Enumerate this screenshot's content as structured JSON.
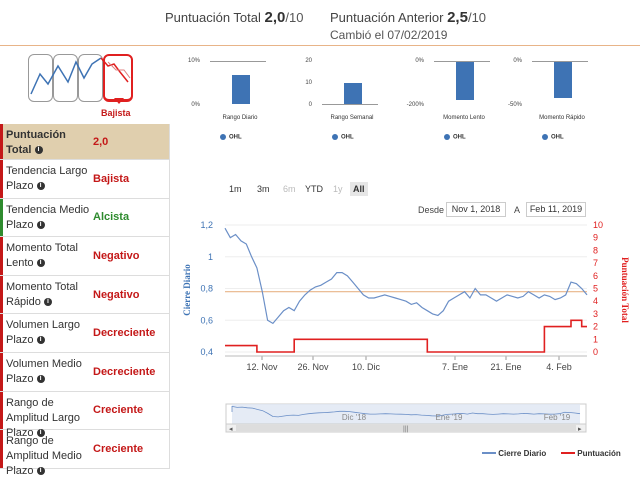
{
  "header": {
    "total_label": "Puntuación Total",
    "total_value": "2,0",
    "total_suffix": "/10",
    "prev_label": "Puntuación Anterior",
    "prev_value": "2,5",
    "prev_suffix": "/10",
    "changed": "Cambió el 07/02/2019"
  },
  "trend": {
    "label": "Bajista",
    "colors": {
      "active": "#e02020",
      "line": "#3e73b4"
    }
  },
  "sidebar": {
    "rows": [
      {
        "label": "Puntuación Total",
        "value": "2,0",
        "color": "red",
        "head": true
      },
      {
        "label": "Tendencia Largo Plazo",
        "value": "Bajista",
        "color": "red"
      },
      {
        "label": "Tendencia Medio Plazo",
        "value": "Alcista",
        "color": "green"
      },
      {
        "label": "Momento Total Lento",
        "value": "Negativo",
        "color": "red"
      },
      {
        "label": "Momento Total Rápido",
        "value": "Negativo",
        "color": "red"
      },
      {
        "label": "Volumen Largo Plazo",
        "value": "Decreciente",
        "color": "red"
      },
      {
        "label": "Volumen Medio Plazo",
        "value": "Decreciente",
        "color": "red"
      },
      {
        "label": "Rango de Amplitud Largo Plazo",
        "value": "Creciente",
        "color": "red"
      },
      {
        "label": "Rango de Amplitud Medio Plazo",
        "value": "Creciente",
        "color": "red"
      }
    ]
  },
  "mini_charts": [
    {
      "type": "bar",
      "title": "Rango Diario",
      "yticks": [
        "10%",
        "0%"
      ],
      "value_frac": 0.7,
      "base": "top0",
      "legend": "OHL"
    },
    {
      "type": "bar",
      "title": "Rango Semanal",
      "yticks": [
        "20",
        "10",
        "0"
      ],
      "value_frac": 0.5,
      "base": "bottom",
      "legend": "OHL"
    },
    {
      "type": "bar",
      "title": "Momento Lento",
      "yticks": [
        "0%",
        "-200%"
      ],
      "value_frac": 0.95,
      "base": "neg",
      "legend": "OHL"
    },
    {
      "type": "bar",
      "title": "Momento Rápido",
      "yticks": [
        "0%",
        "-50%"
      ],
      "value_frac": 0.9,
      "base": "neg",
      "legend": "OHL"
    }
  ],
  "range_selector": {
    "buttons": [
      "1m",
      "3m",
      "6m",
      "YTD",
      "1y",
      "All"
    ],
    "selected": "All",
    "disabled": [
      "6m",
      "1y"
    ],
    "from_label": "Desde",
    "from_value": "Nov 1, 2018",
    "to_label": "A",
    "to_value": "Feb 11, 2019"
  },
  "chart_data": {
    "type": "line",
    "ylabel": "Cierre Diario",
    "y2label": "Puntuación Total",
    "x_ticks": [
      "12. Nov",
      "26. Nov",
      "10. Dic",
      "7. Ene",
      "21. Ene",
      "4. Feb"
    ],
    "y_ticks": [
      "1,2",
      "1",
      "0,8",
      "0,6",
      "0,4"
    ],
    "y2_ticks": [
      "10",
      "9",
      "8",
      "7",
      "6",
      "5",
      "4",
      "3",
      "2",
      "1",
      "0"
    ],
    "ylim": [
      0.4,
      1.2
    ],
    "y2lim": [
      0,
      10
    ],
    "reference_line": 0.78,
    "navigator_labels": [
      "Dic '18",
      "Ene '19",
      "Feb '19"
    ],
    "series": [
      {
        "name": "Cierre Diario",
        "color": "#6b8fc7",
        "values": [
          1.18,
          1.12,
          1.14,
          1.1,
          1.08,
          1.0,
          0.93,
          0.78,
          0.6,
          0.58,
          0.62,
          0.66,
          0.68,
          0.66,
          0.72,
          0.76,
          0.79,
          0.81,
          0.82,
          0.84,
          0.86,
          0.9,
          0.9,
          0.88,
          0.84,
          0.8,
          0.76,
          0.74,
          0.74,
          0.75,
          0.76,
          0.75,
          0.74,
          0.73,
          0.72,
          0.7,
          0.71,
          0.68,
          0.66,
          0.64,
          0.63,
          0.66,
          0.72,
          0.74,
          0.76,
          0.78,
          0.74,
          0.8,
          0.76,
          0.76,
          0.74,
          0.72,
          0.74,
          0.76,
          0.75,
          0.74,
          0.75,
          0.78,
          0.76,
          0.74,
          0.76,
          0.75,
          0.73,
          0.74,
          0.76,
          0.84,
          0.83,
          0.8,
          0.76
        ]
      },
      {
        "name": "Puntuación",
        "color": "#e02020",
        "values": [
          0.5,
          0.5,
          0.5,
          0.5,
          0.5,
          0.5,
          0,
          0,
          0,
          0,
          0,
          0,
          0,
          1,
          1,
          1,
          1,
          1,
          1,
          1,
          1,
          1,
          1,
          1,
          1,
          1,
          1,
          1,
          1,
          1,
          1,
          1,
          1,
          1,
          1,
          1,
          1,
          1,
          0,
          0,
          0,
          0,
          0,
          0,
          0,
          0,
          0,
          0,
          0,
          0,
          0,
          0,
          0,
          0,
          0,
          0,
          0,
          0,
          0,
          0,
          2,
          2,
          2,
          2,
          2,
          2.5,
          2.5,
          2,
          2
        ]
      }
    ]
  }
}
